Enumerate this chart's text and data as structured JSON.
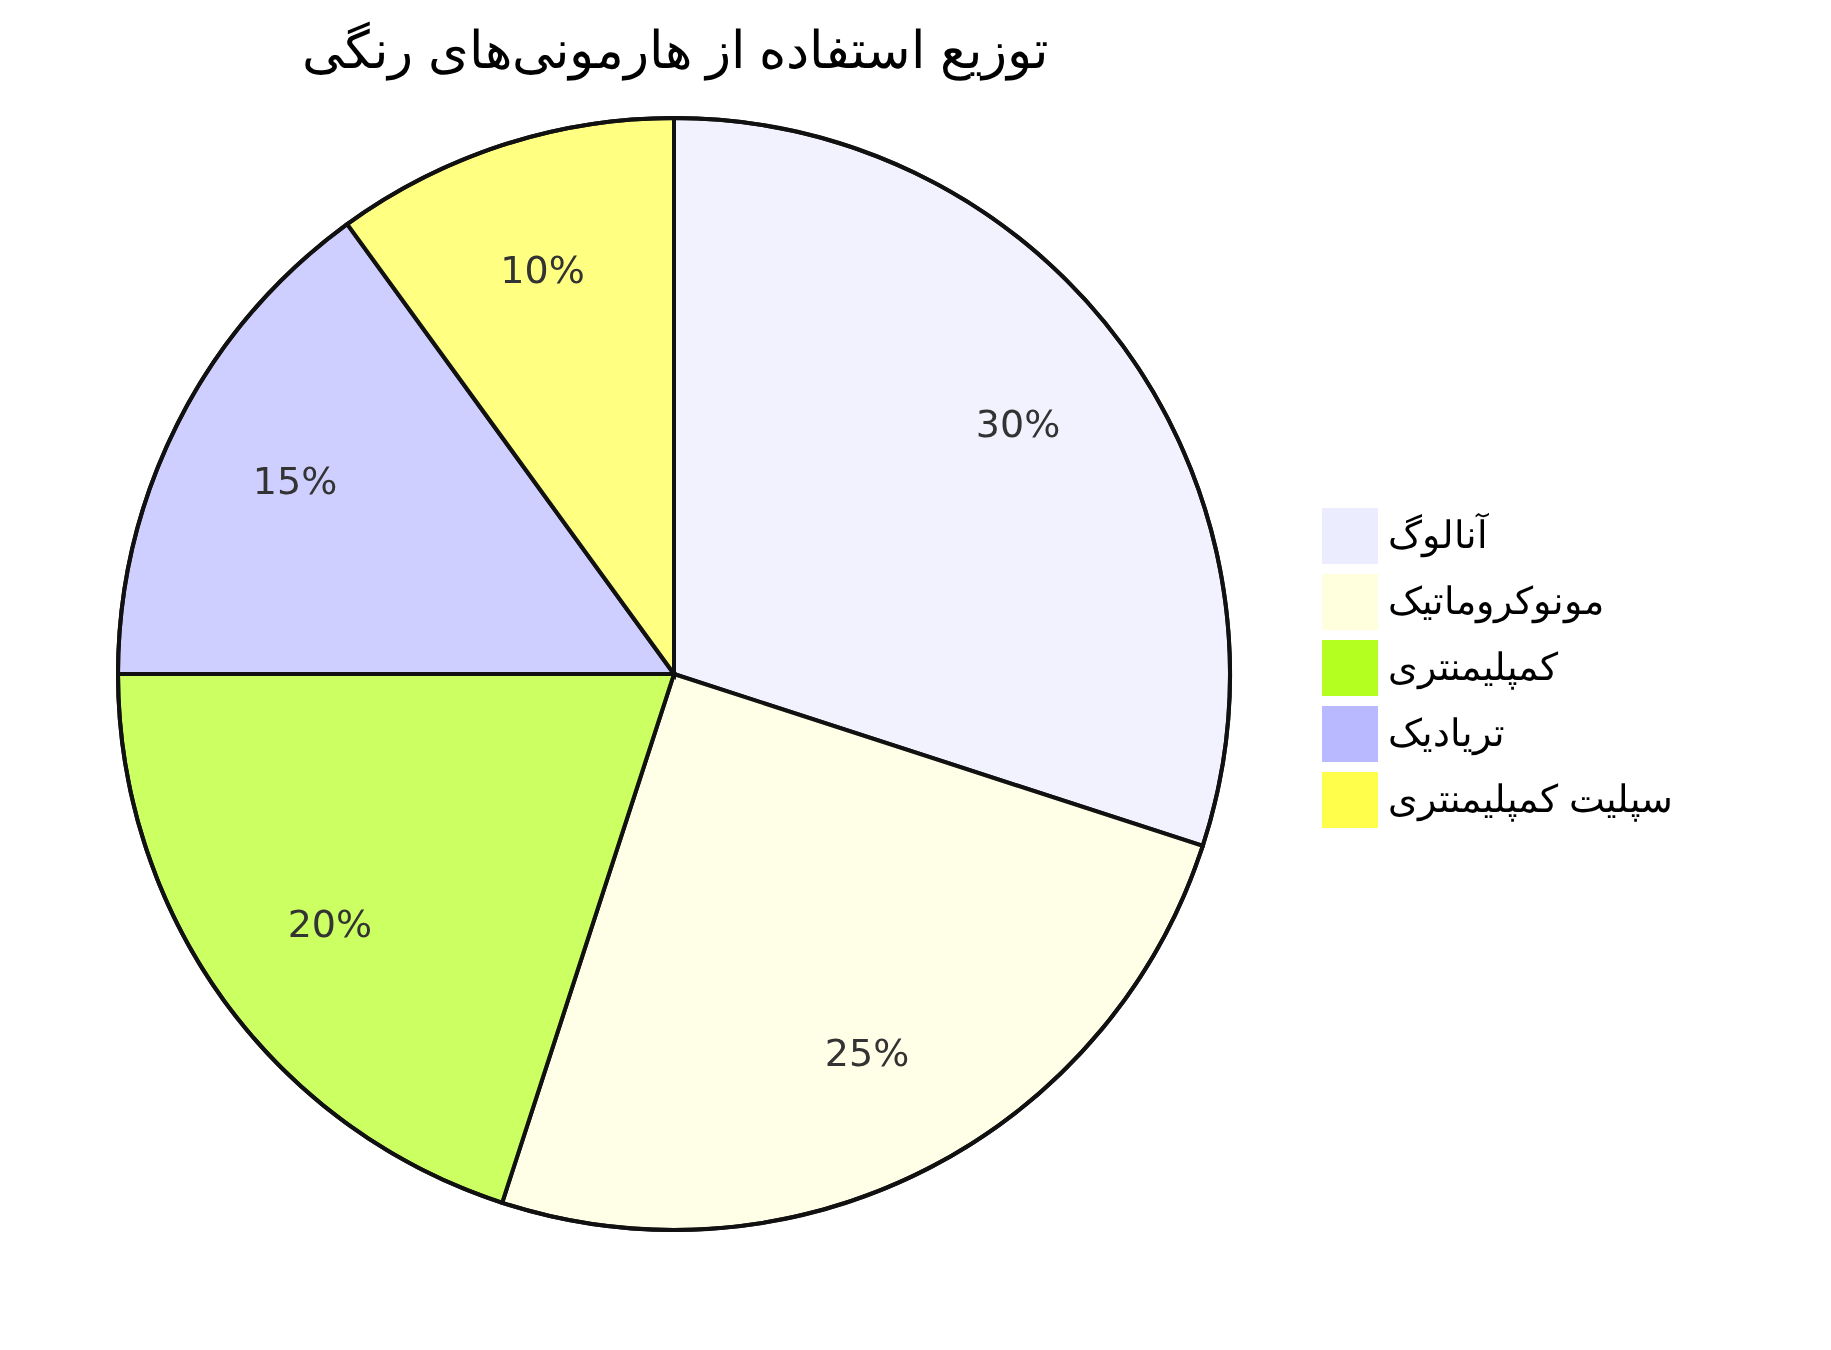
{
  "chart_data": {
    "type": "pie",
    "title": "توزیع استفاده از هارمونی‌های رنگی",
    "categories": [
      "آنالوگ",
      "مونوکروماتیک",
      "کمپلیمنتری",
      "تریادیک",
      "سپلیت کمپلیمنتری"
    ],
    "values": [
      30,
      25,
      20,
      15,
      10
    ],
    "value_labels": [
      "30%",
      "25%",
      "20%",
      "15%",
      "10%"
    ],
    "colors": [
      "#ececff",
      "#ffffde",
      "#b5ff20",
      "#b9b9ff",
      "#ffff4b"
    ],
    "legend": "right"
  }
}
